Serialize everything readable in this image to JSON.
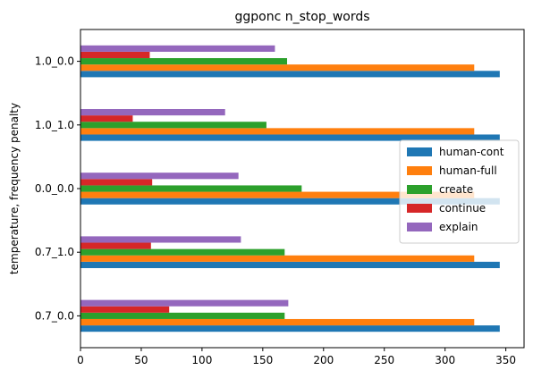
{
  "chart_data": {
    "type": "bar",
    "orientation": "horizontal",
    "title": "ggponc n_stop_words",
    "xlabel": "",
    "ylabel": "temperature, frequency penalty",
    "xlim": [
      0,
      365
    ],
    "xticks": [
      "0",
      "50",
      "100",
      "150",
      "200",
      "250",
      "300",
      "350"
    ],
    "xtick_values": [
      0,
      50,
      100,
      150,
      200,
      250,
      300,
      350
    ],
    "categories": [
      "0.7_0.0",
      "0.7_1.0",
      "0.0_0.0",
      "1.0_1.0",
      "1.0_0.0"
    ],
    "series": [
      {
        "name": "human-cont",
        "color": "#1f77b4",
        "values": [
          345,
          345,
          345,
          345,
          345
        ]
      },
      {
        "name": "human-full",
        "color": "#ff7f0e",
        "values": [
          324,
          324,
          324,
          324,
          324
        ]
      },
      {
        "name": "create",
        "color": "#2ca02c",
        "values": [
          168,
          168,
          182,
          153,
          170
        ]
      },
      {
        "name": "continue",
        "color": "#d62728",
        "values": [
          73,
          58,
          59,
          43,
          57
        ]
      },
      {
        "name": "explain",
        "color": "#9467bd",
        "values": [
          171,
          132,
          130,
          119,
          160
        ]
      }
    ],
    "legend": {
      "position": "center-right",
      "entries": [
        "human-cont",
        "human-full",
        "create",
        "continue",
        "explain"
      ]
    },
    "grid": false
  }
}
